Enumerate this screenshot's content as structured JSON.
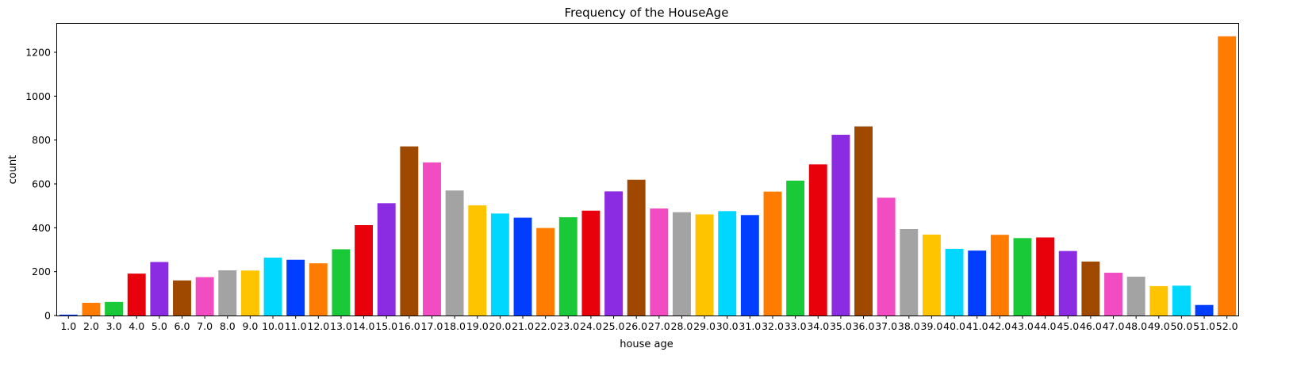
{
  "chart_data": {
    "type": "bar",
    "title": "Frequency of the HouseAge",
    "xlabel": "house age",
    "ylabel": "count",
    "ylim": [
      0,
      1330
    ],
    "yticks": [
      0,
      200,
      400,
      600,
      800,
      1000,
      1200
    ],
    "grid": false,
    "palette": [
      "#023eff",
      "#ff7c00",
      "#1ac938",
      "#e8000b",
      "#8b2be2",
      "#9f4800",
      "#f14cc1",
      "#a3a3a3",
      "#ffc400",
      "#00d7ff"
    ],
    "categories": [
      "1.0",
      "2.0",
      "3.0",
      "4.0",
      "5.0",
      "6.0",
      "7.0",
      "8.0",
      "9.0",
      "10.0",
      "11.0",
      "12.0",
      "13.0",
      "14.0",
      "15.0",
      "16.0",
      "17.0",
      "18.0",
      "19.0",
      "20.0",
      "21.0",
      "22.0",
      "23.0",
      "24.0",
      "25.0",
      "26.0",
      "27.0",
      "28.0",
      "29.0",
      "30.0",
      "31.0",
      "32.0",
      "33.0",
      "34.0",
      "35.0",
      "36.0",
      "37.0",
      "38.0",
      "39.0",
      "40.0",
      "41.0",
      "42.0",
      "43.0",
      "44.0",
      "45.0",
      "46.0",
      "47.0",
      "48.0",
      "49.0",
      "50.0",
      "51.0",
      "52.0"
    ],
    "values": [
      4,
      58,
      62,
      191,
      244,
      160,
      175,
      206,
      205,
      264,
      254,
      238,
      302,
      412,
      512,
      771,
      698,
      570,
      502,
      465,
      446,
      399,
      448,
      478,
      566,
      619,
      488,
      471,
      461,
      476,
      458,
      565,
      615,
      689,
      824,
      862,
      537,
      394,
      369,
      304,
      296,
      368,
      353,
      356,
      294,
      246,
      195,
      177,
      134,
      136,
      48,
      1273
    ]
  }
}
